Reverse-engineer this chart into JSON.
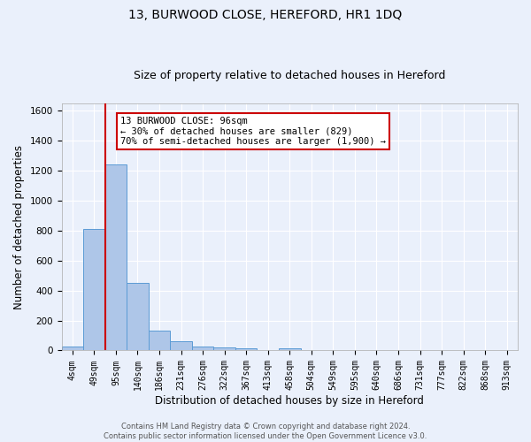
{
  "title": "13, BURWOOD CLOSE, HEREFORD, HR1 1DQ",
  "subtitle": "Size of property relative to detached houses in Hereford",
  "xlabel": "Distribution of detached houses by size in Hereford",
  "ylabel": "Number of detached properties",
  "bin_labels": [
    "4sqm",
    "49sqm",
    "95sqm",
    "140sqm",
    "186sqm",
    "231sqm",
    "276sqm",
    "322sqm",
    "367sqm",
    "413sqm",
    "458sqm",
    "504sqm",
    "549sqm",
    "595sqm",
    "640sqm",
    "686sqm",
    "731sqm",
    "777sqm",
    "822sqm",
    "868sqm",
    "913sqm"
  ],
  "bar_heights": [
    25,
    810,
    1240,
    450,
    130,
    60,
    25,
    18,
    15,
    0,
    15,
    0,
    0,
    0,
    0,
    0,
    0,
    0,
    0,
    0,
    0
  ],
  "bar_color": "#aec6e8",
  "bar_edge_color": "#5b9bd5",
  "ylim": [
    0,
    1650
  ],
  "yticks": [
    0,
    200,
    400,
    600,
    800,
    1000,
    1200,
    1400,
    1600
  ],
  "vline_x_index": 2,
  "vline_color": "#cc0000",
  "annotation_text": "13 BURWOOD CLOSE: 96sqm\n← 30% of detached houses are smaller (829)\n70% of semi-detached houses are larger (1,900) →",
  "annotation_box_color": "#ffffff",
  "annotation_box_edge": "#cc0000",
  "footer_text": "Contains HM Land Registry data © Crown copyright and database right 2024.\nContains public sector information licensed under the Open Government Licence v3.0.",
  "bg_color": "#eaf0fb",
  "grid_color": "#ffffff",
  "title_fontsize": 10,
  "subtitle_fontsize": 9,
  "tick_fontsize": 7,
  "ylabel_fontsize": 8.5,
  "xlabel_fontsize": 8.5
}
